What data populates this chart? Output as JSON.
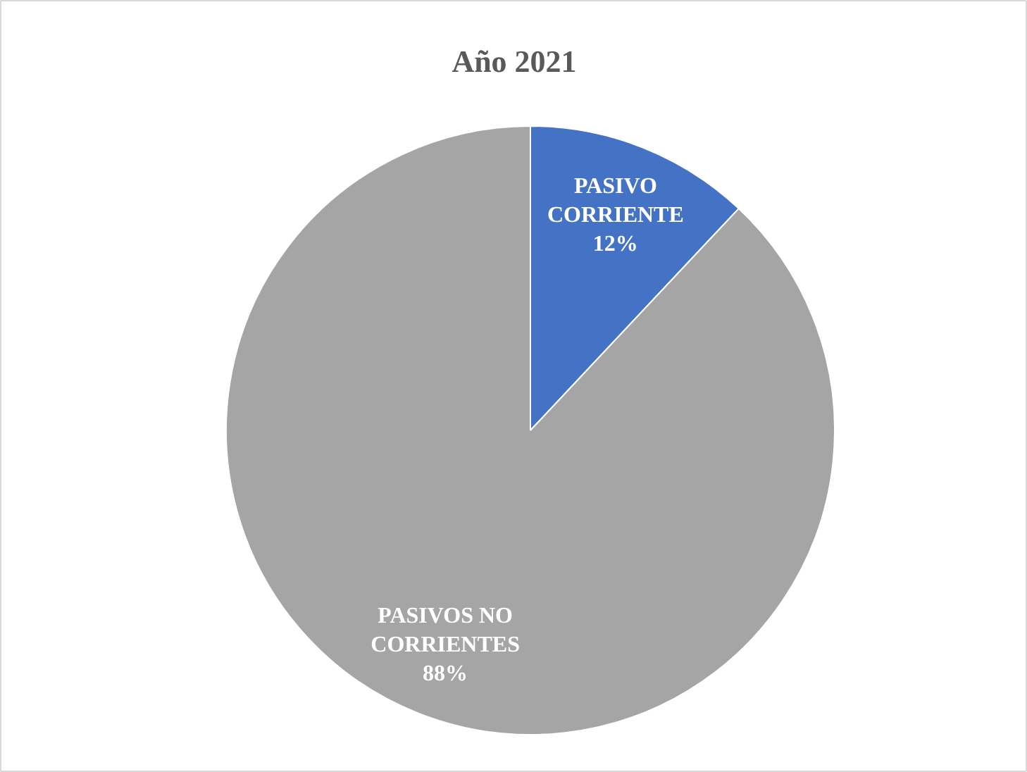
{
  "chart_data": {
    "type": "pie",
    "title": "Año 2021",
    "categories": [
      "PASIVO CORRIENTE",
      "PASIVOS NO CORRIENTES"
    ],
    "values": [
      12,
      88
    ],
    "colors": [
      "#4472c4",
      "#a5a5a5"
    ],
    "value_labels": [
      "12%",
      "88%"
    ]
  }
}
